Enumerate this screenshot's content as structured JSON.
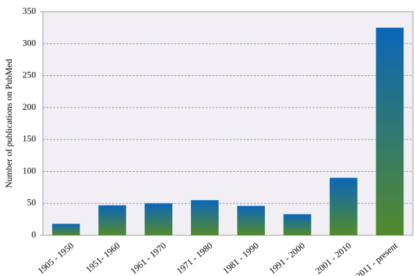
{
  "chart_data": {
    "type": "bar",
    "y_label": "Number of publications on PubMed",
    "categories": [
      "1905 - 1950",
      "1951- 1960",
      "1961 - 1970",
      "1971 - 1980",
      "1981 - 1990",
      "1991 - 2000",
      "2001 - 2010",
      "2011 - present"
    ],
    "values": [
      18,
      47,
      50,
      55,
      46,
      33,
      90,
      325
    ],
    "gradient": [
      "#0b66b8",
      "#548a2c"
    ],
    "ylim": [
      0,
      350
    ],
    "yticks": [
      0,
      50,
      100,
      150,
      200,
      250,
      300,
      350
    ],
    "grid": true,
    "grid_color": "#5b7fd6"
  }
}
